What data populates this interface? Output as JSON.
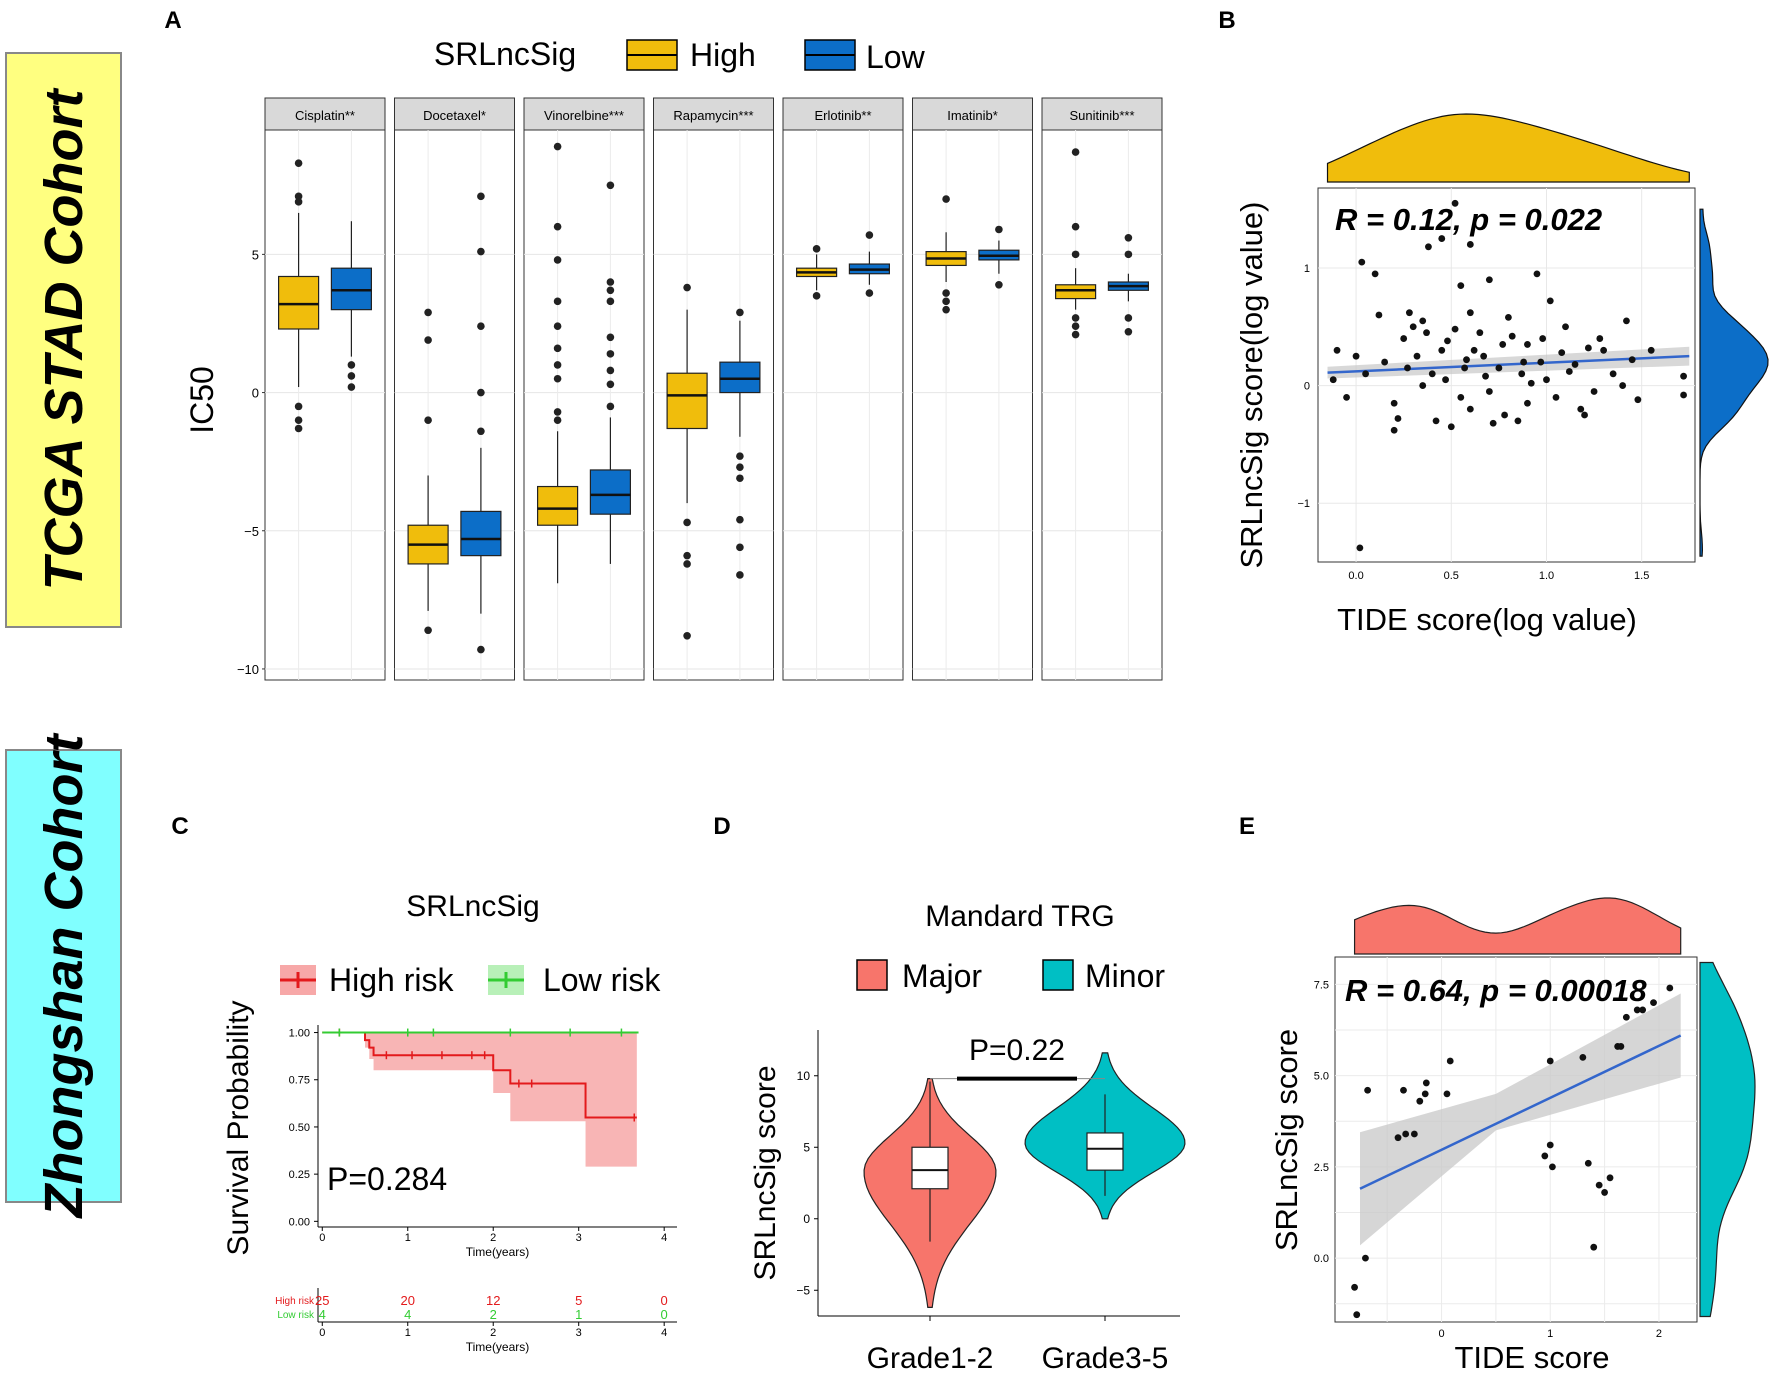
{
  "cohorts": {
    "tcga": {
      "label": "TCGA STAD Cohort",
      "color": "#ffff80"
    },
    "zhongshan": {
      "label": "Zhongshan Cohort",
      "color": "#80ffff"
    }
  },
  "colors": {
    "high": "#f0bd0c",
    "low": "#0c6ec8",
    "major": "#f7756b",
    "minor": "#00bfc4",
    "km_high": "#e31a1c",
    "km_low": "#33cc33",
    "trend": "#3366cc"
  },
  "panel_labels": {
    "a": "A",
    "b": "B",
    "c": "C",
    "d": "D",
    "e": "E"
  },
  "chart_data": [
    {
      "id": "A",
      "type": "boxplot",
      "legend_title": "SRLncSig",
      "legend": [
        "High",
        "Low"
      ],
      "ylabel": "IC50",
      "xlabel": "",
      "ylim": [
        -10.4,
        9.5
      ],
      "yticks": [
        -10,
        -5,
        0,
        5
      ],
      "facets": [
        {
          "label": "Cisplatin**",
          "high": {
            "min": 0.2,
            "q1": 2.3,
            "median": 3.2,
            "q3": 4.2,
            "max": 6.5,
            "outliers": [
              -0.5,
              -1.0,
              -1.3,
              6.9,
              7.1,
              8.3
            ]
          },
          "low": {
            "min": 1.3,
            "q1": 3.0,
            "median": 3.7,
            "q3": 4.5,
            "max": 6.2,
            "outliers": [
              1.0,
              0.6,
              0.2
            ]
          }
        },
        {
          "label": "Docetaxel*",
          "high": {
            "min": -7.9,
            "q1": -6.2,
            "median": -5.5,
            "q3": -4.8,
            "max": -3.0,
            "outliers": [
              -1.0,
              1.9,
              2.9,
              -8.6
            ]
          },
          "low": {
            "min": -8.0,
            "q1": -5.9,
            "median": -5.3,
            "q3": -4.3,
            "max": -2.0,
            "outliers": [
              -1.4,
              0.0,
              2.4,
              5.1,
              7.1,
              -9.3
            ]
          }
        },
        {
          "label": "Vinorelbine***",
          "high": {
            "min": -6.9,
            "q1": -4.8,
            "median": -4.2,
            "q3": -3.4,
            "max": -1.4,
            "outliers": [
              -1.0,
              -0.7,
              0.5,
              1.0,
              1.6,
              2.4,
              3.3,
              4.8,
              6.0,
              8.9
            ]
          },
          "low": {
            "min": -6.2,
            "q1": -4.4,
            "median": -3.7,
            "q3": -2.8,
            "max": -0.9,
            "outliers": [
              -0.5,
              0.3,
              0.8,
              1.4,
              2.0,
              3.3,
              3.7,
              4.0,
              7.5
            ]
          }
        },
        {
          "label": "Rapamycin***",
          "high": {
            "min": -4.0,
            "q1": -1.3,
            "median": -0.1,
            "q3": 0.7,
            "max": 3.0,
            "outliers": [
              3.8,
              -4.7,
              -5.9,
              -6.2,
              -8.8
            ]
          },
          "low": {
            "min": -1.6,
            "q1": 0.0,
            "median": 0.5,
            "q3": 1.1,
            "max": 2.6,
            "outliers": [
              2.9,
              -2.3,
              -2.7,
              -3.1,
              -4.6,
              -5.6,
              -6.6
            ]
          }
        },
        {
          "label": "Erlotinib**",
          "high": {
            "min": 3.7,
            "q1": 4.2,
            "median": 4.35,
            "q3": 4.5,
            "max": 5.0,
            "outliers": [
              3.5,
              5.2
            ]
          },
          "low": {
            "min": 3.9,
            "q1": 4.3,
            "median": 4.45,
            "q3": 4.65,
            "max": 5.1,
            "outliers": [
              3.6,
              5.7
            ]
          }
        },
        {
          "label": "Imatinib*",
          "high": {
            "min": 4.0,
            "q1": 4.6,
            "median": 4.85,
            "q3": 5.1,
            "max": 5.8,
            "outliers": [
              3.0,
              3.3,
              3.6,
              7.0
            ]
          },
          "low": {
            "min": 4.3,
            "q1": 4.8,
            "median": 4.95,
            "q3": 5.15,
            "max": 5.5,
            "outliers": [
              3.9,
              5.9
            ]
          }
        },
        {
          "label": "Sunitinib***",
          "high": {
            "min": 3.0,
            "q1": 3.4,
            "median": 3.7,
            "q3": 3.9,
            "max": 4.5,
            "outliers": [
              2.1,
              2.4,
              2.7,
              5.0,
              6.0,
              8.7
            ]
          },
          "low": {
            "min": 3.3,
            "q1": 3.7,
            "median": 3.85,
            "q3": 4.0,
            "max": 4.3,
            "outliers": [
              2.2,
              2.7,
              5.0,
              5.6
            ]
          }
        }
      ]
    },
    {
      "id": "B",
      "type": "scatter",
      "annotation": "R = 0.12, p = 0.022",
      "xlabel": "TIDE score(log value)",
      "ylabel": "SRLncSig score(log value)",
      "xlim": [
        -0.2,
        1.78
      ],
      "ylim": [
        -1.5,
        1.68
      ],
      "xticks": [
        0.0,
        0.5,
        1.0,
        1.5
      ],
      "yticks": [
        -1,
        0,
        1
      ],
      "trend": {
        "x": [
          -0.15,
          1.75
        ],
        "y": [
          0.11,
          0.25
        ]
      },
      "points": [
        [
          0.03,
          1.05
        ],
        [
          0.1,
          0.95
        ],
        [
          0.28,
          0.62
        ],
        [
          0.38,
          1.18
        ],
        [
          0.45,
          1.25
        ],
        [
          0.52,
          1.55
        ],
        [
          0.55,
          0.85
        ],
        [
          0.6,
          1.2
        ],
        [
          0.7,
          0.9
        ],
        [
          0.95,
          0.95
        ],
        [
          1.02,
          0.72
        ],
        [
          0.02,
          -1.38
        ],
        [
          0.2,
          -0.38
        ],
        [
          0.5,
          -0.35
        ],
        [
          0.85,
          -0.3
        ],
        [
          1.2,
          -0.25
        ],
        [
          1.42,
          0.55
        ],
        [
          1.55,
          0.3
        ],
        [
          1.72,
          -0.08
        ],
        [
          1.72,
          0.08
        ],
        [
          0.3,
          0.5
        ],
        [
          0.35,
          0.55
        ],
        [
          0.6,
          0.62
        ],
        [
          0.8,
          0.58
        ],
        [
          1.1,
          0.5
        ],
        [
          0.15,
          0.2
        ],
        [
          0.25,
          0.4
        ],
        [
          0.45,
          0.3
        ],
        [
          0.65,
          0.45
        ],
        [
          0.9,
          0.35
        ],
        [
          1.3,
          0.3
        ],
        [
          0.05,
          0.1
        ],
        [
          0.4,
          0.1
        ],
        [
          0.55,
          -0.1
        ],
        [
          0.75,
          0.15
        ],
        [
          1.0,
          0.05
        ],
        [
          1.35,
          0.1
        ],
        [
          0.2,
          -0.15
        ],
        [
          0.6,
          -0.2
        ],
        [
          0.9,
          -0.15
        ],
        [
          1.15,
          0.18
        ],
        [
          1.45,
          0.22
        ],
        [
          0.0,
          0.25
        ],
        [
          0.35,
          0.0
        ],
        [
          0.7,
          -0.05
        ],
        [
          1.05,
          -0.1
        ],
        [
          0.48,
          0.38
        ],
        [
          0.58,
          0.22
        ],
        [
          0.68,
          0.08
        ],
        [
          0.78,
          -0.25
        ],
        [
          0.88,
          0.2
        ],
        [
          0.98,
          0.4
        ],
        [
          1.25,
          -0.05
        ],
        [
          1.4,
          0.0
        ],
        [
          -0.1,
          0.3
        ],
        [
          -0.05,
          -0.1
        ],
        [
          -0.12,
          0.05
        ],
        [
          0.12,
          0.6
        ],
        [
          0.22,
          -0.28
        ],
        [
          0.32,
          0.25
        ],
        [
          0.42,
          -0.3
        ],
        [
          0.52,
          0.48
        ],
        [
          0.62,
          0.3
        ],
        [
          0.72,
          -0.32
        ],
        [
          0.82,
          0.42
        ],
        [
          0.92,
          0.02
        ],
        [
          1.08,
          0.28
        ],
        [
          1.18,
          -0.2
        ],
        [
          1.28,
          0.4
        ],
        [
          1.48,
          -0.12
        ],
        [
          0.27,
          0.15
        ],
        [
          0.37,
          0.45
        ],
        [
          0.47,
          0.05
        ],
        [
          0.57,
          0.15
        ],
        [
          0.67,
          0.25
        ],
        [
          0.77,
          0.35
        ],
        [
          0.87,
          0.1
        ],
        [
          0.97,
          0.2
        ],
        [
          1.12,
          0.12
        ],
        [
          1.22,
          0.32
        ]
      ]
    },
    {
      "id": "C",
      "type": "line",
      "title": "SRLncSig",
      "legend": [
        "High risk",
        "Low risk"
      ],
      "xlabel": "Time(years)",
      "ylabel": "Survival Probability",
      "xlim": [
        -0.05,
        4.15
      ],
      "ylim": [
        -0.03,
        1.04
      ],
      "xticks": [
        0,
        1,
        2,
        3,
        4
      ],
      "yticks": [
        0.0,
        0.25,
        0.5,
        0.75,
        1.0
      ],
      "ytick_labels": [
        "0.00",
        "0.25",
        "0.50",
        "0.75",
        "1.00"
      ],
      "pvalue": "P=0.284",
      "series": [
        {
          "name": "High risk",
          "times": [
            0,
            0.5,
            0.55,
            0.6,
            2.0,
            2.2,
            3.08,
            3.68
          ],
          "values": [
            1.0,
            0.96,
            0.92,
            0.88,
            0.8,
            0.73,
            0.55,
            0.55
          ],
          "ci_low": [
            1.0,
            0.92,
            0.86,
            0.8,
            0.68,
            0.53,
            0.29,
            0.29
          ],
          "ci_high": [
            1.0,
            1.0,
            1.0,
            1.0,
            1.0,
            1.0,
            1.0,
            1.0
          ],
          "censor": [
            0.2,
            0.75,
            1.05,
            1.4,
            1.75,
            1.9,
            2.3,
            2.45,
            3.65
          ]
        },
        {
          "name": "Low risk",
          "times": [
            0,
            3.7
          ],
          "values": [
            1.0,
            1.0
          ],
          "censor": [
            0.2,
            1.0,
            1.3,
            2.2,
            2.9,
            3.5
          ]
        }
      ],
      "risk_table": {
        "xlabel": "Time(years)",
        "xticks": [
          0,
          1,
          2,
          3,
          4
        ],
        "rows": [
          {
            "label": "High risk",
            "values": [
              25,
              20,
              12,
              5,
              0
            ]
          },
          {
            "label": "Low risk",
            "values": [
              4,
              4,
              2,
              1,
              0
            ]
          }
        ]
      }
    },
    {
      "id": "D",
      "type": "violin",
      "legend_title": "Mandard TRG",
      "legend": [
        "Major",
        "Minor"
      ],
      "categories": [
        "Grade1-2",
        "Grade3-5"
      ],
      "xlabel": "",
      "ylabel": "SRLncSig score",
      "ylim": [
        -6.8,
        13.2
      ],
      "yticks": [
        -5,
        0,
        5,
        10
      ],
      "pvalue": "P=0.22",
      "groups": [
        {
          "name": "Major",
          "min": -1.6,
          "q1": 2.1,
          "median": 3.4,
          "q3": 5.0,
          "max": 9.6,
          "violin_low": -6.2,
          "violin_high": 9.8
        },
        {
          "name": "Minor",
          "min": 1.6,
          "q1": 3.4,
          "median": 4.9,
          "q3": 6.0,
          "max": 8.7,
          "violin_low": 0.0,
          "violin_high": 11.6
        }
      ]
    },
    {
      "id": "E",
      "type": "scatter",
      "annotation": "R = 0.64, p = 0.00018",
      "xlabel": "TIDE score",
      "ylabel": "SRLncSig score",
      "xlim": [
        -0.98,
        2.35
      ],
      "ylim": [
        -1.75,
        8.25
      ],
      "xticks": [
        0,
        1,
        2
      ],
      "yticks": [
        0.0,
        2.5,
        5.0,
        7.5
      ],
      "ytick_labels": [
        "0.0",
        "2.5",
        "5.0",
        "7.5"
      ],
      "trend": {
        "x": [
          -0.75,
          2.2
        ],
        "y": [
          1.9,
          6.1
        ]
      },
      "points": [
        [
          -0.78,
          -1.55
        ],
        [
          -0.8,
          -0.8
        ],
        [
          -0.7,
          0.0
        ],
        [
          -0.68,
          4.6
        ],
        [
          -0.4,
          3.3
        ],
        [
          -0.35,
          4.6
        ],
        [
          -0.33,
          3.4
        ],
        [
          -0.25,
          3.4
        ],
        [
          -0.2,
          4.3
        ],
        [
          -0.15,
          4.5
        ],
        [
          -0.14,
          4.8
        ],
        [
          0.05,
          4.5
        ],
        [
          0.08,
          5.4
        ],
        [
          1.0,
          5.4
        ],
        [
          0.95,
          2.8
        ],
        [
          1.0,
          3.1
        ],
        [
          1.02,
          2.5
        ],
        [
          1.3,
          5.5
        ],
        [
          1.35,
          2.6
        ],
        [
          1.4,
          0.3
        ],
        [
          1.45,
          2.0
        ],
        [
          1.5,
          1.8
        ],
        [
          1.55,
          2.2
        ],
        [
          1.62,
          5.8
        ],
        [
          1.65,
          5.8
        ],
        [
          1.7,
          6.6
        ],
        [
          1.8,
          6.8
        ],
        [
          1.85,
          6.8
        ],
        [
          1.95,
          7.0
        ],
        [
          2.1,
          7.4
        ]
      ]
    }
  ]
}
